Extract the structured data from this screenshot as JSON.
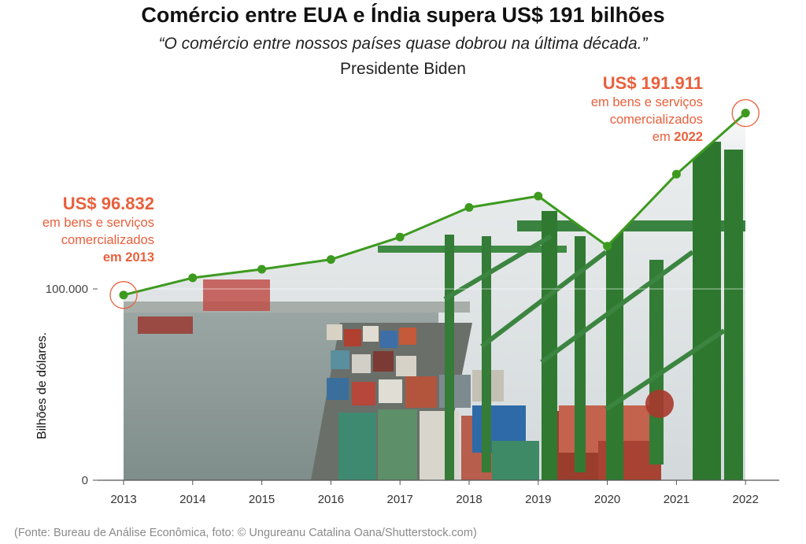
{
  "title": "Comércio entre EUA e Índia supera US$ 191 bilhões",
  "subtitle": "“O comércio entre nossos países quase dobrou na última década.”",
  "attribution": "Presidente Biden",
  "annotations": {
    "first": {
      "value": "US$ 96.832",
      "line1": "em bens e serviços",
      "line2": "comercializados",
      "line3": "em 2013"
    },
    "last": {
      "value": "US$ 191.911",
      "line1": "em bens e serviços",
      "line2": "comercializados",
      "line3_prefix": "em ",
      "line3_year": "2022"
    }
  },
  "source": "(Fonte: Bureau de Análise Econômica, foto: © Ungureanu Catalina Oana/Shutterstock.com)",
  "colors": {
    "line": "#3d9a1f",
    "accent": "#e8603c",
    "axis": "#555555",
    "water": "#8b9896",
    "sky": "#dadfe1",
    "crane": "#2f7a30"
  },
  "chart_data": {
    "type": "line",
    "ylabel": "Bilhões de dólares.",
    "xlabel": "",
    "x": [
      "2013",
      "2014",
      "2015",
      "2016",
      "2017",
      "2018",
      "2019",
      "2020",
      "2021",
      "2022"
    ],
    "series": [
      {
        "values": [
          96.832,
          105.8,
          110.3,
          115.4,
          127.1,
          142.6,
          148.5,
          122.4,
          160.0,
          191.911
        ]
      }
    ],
    "yticks": [
      0,
      100
    ],
    "ytick_labels": [
      "0",
      "100.000"
    ],
    "ylim": [
      0,
      200
    ],
    "grid": false,
    "background": "photo of a container ship and port cranes"
  }
}
